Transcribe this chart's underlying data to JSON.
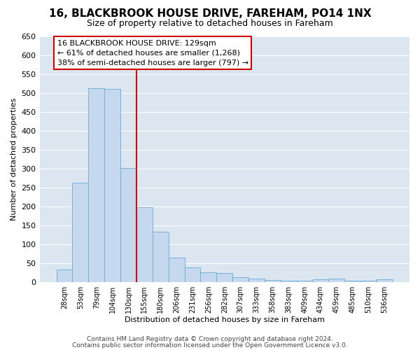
{
  "title1": "16, BLACKBROOK HOUSE DRIVE, FAREHAM, PO14 1NX",
  "title2": "Size of property relative to detached houses in Fareham",
  "xlabel": "Distribution of detached houses by size in Fareham",
  "ylabel": "Number of detached properties",
  "categories": [
    "28sqm",
    "53sqm",
    "79sqm",
    "104sqm",
    "130sqm",
    "155sqm",
    "180sqm",
    "206sqm",
    "231sqm",
    "256sqm",
    "282sqm",
    "307sqm",
    "333sqm",
    "358sqm",
    "383sqm",
    "409sqm",
    "434sqm",
    "459sqm",
    "485sqm",
    "510sqm",
    "536sqm"
  ],
  "values": [
    32,
    263,
    512,
    510,
    302,
    197,
    132,
    65,
    38,
    25,
    23,
    13,
    8,
    5,
    4,
    3,
    6,
    8,
    3,
    3,
    6
  ],
  "bar_color": "#c5d8ee",
  "bar_edge_color": "#6aaad4",
  "highlight_index": 4,
  "highlight_line_color": "#cc0000",
  "ylim": [
    0,
    650
  ],
  "yticks": [
    0,
    50,
    100,
    150,
    200,
    250,
    300,
    350,
    400,
    450,
    500,
    550,
    600,
    650
  ],
  "annotation_line1": "16 BLACKBROOK HOUSE DRIVE: 129sqm",
  "annotation_line2": "← 61% of detached houses are smaller (1,268)",
  "annotation_line3": "38% of semi-detached houses are larger (797) →",
  "annotation_box_facecolor": "#ffffff",
  "annotation_box_edgecolor": "#cc0000",
  "footer1": "Contains HM Land Registry data © Crown copyright and database right 2024.",
  "footer2": "Contains public sector information licensed under the Open Government Licence v3.0.",
  "plot_bg_color": "#dce6f0",
  "fig_bg_color": "#ffffff",
  "grid_color": "#ffffff",
  "fig_width": 6.0,
  "fig_height": 5.0,
  "title1_fontsize": 11,
  "title2_fontsize": 9,
  "xlabel_fontsize": 8,
  "ylabel_fontsize": 8,
  "xtick_fontsize": 7,
  "ytick_fontsize": 8,
  "annotation_fontsize": 8,
  "footer_fontsize": 6.5
}
